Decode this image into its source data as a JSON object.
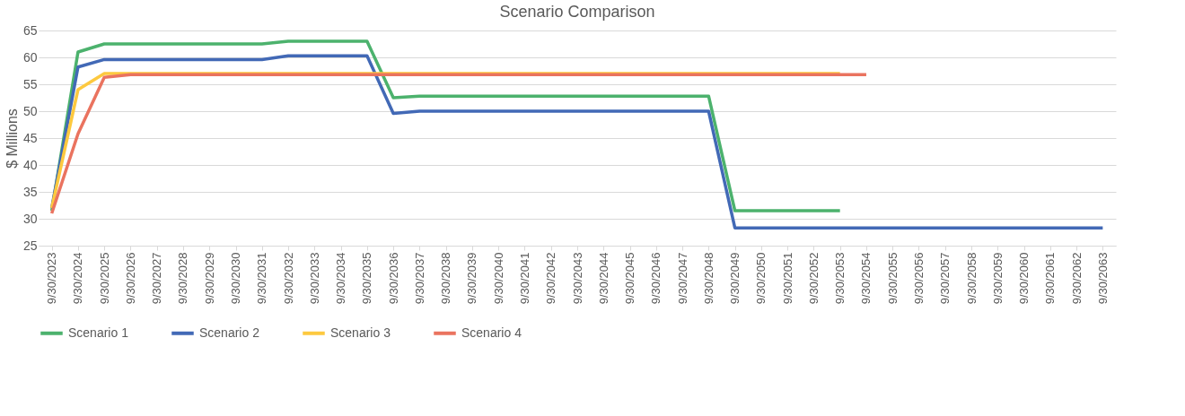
{
  "chart_data": {
    "type": "line",
    "title": "Scenario Comparison",
    "ylabel": "$ Millions",
    "categories": [
      "9/30/2023",
      "9/30/2024",
      "9/30/2025",
      "9/30/2026",
      "9/30/2027",
      "9/30/2028",
      "9/30/2029",
      "9/30/2030",
      "9/30/2031",
      "9/30/2032",
      "9/30/2033",
      "9/30/2034",
      "9/30/2035",
      "9/30/2036",
      "9/30/2037",
      "9/30/2038",
      "9/30/2039",
      "9/30/2040",
      "9/30/2041",
      "9/30/2042",
      "9/30/2043",
      "9/30/2044",
      "9/30/2045",
      "9/30/2046",
      "9/30/2047",
      "9/30/2048",
      "9/30/2049",
      "9/30/2050",
      "9/30/2051",
      "9/30/2052",
      "9/30/2053",
      "9/30/2054",
      "9/30/2055",
      "9/30/2056",
      "9/30/2057",
      "9/30/2058",
      "9/30/2059",
      "9/30/2060",
      "9/30/2061",
      "9/30/2062",
      "9/30/2063"
    ],
    "series": [
      {
        "name": "Scenario 1",
        "color": "#4cb26d",
        "values": [
          31.5,
          61,
          62.5,
          62.5,
          62.5,
          62.5,
          62.5,
          62.5,
          62.5,
          63,
          63,
          63,
          63,
          52.5,
          52.8,
          52.8,
          52.8,
          52.8,
          52.8,
          52.8,
          52.8,
          52.8,
          52.8,
          52.8,
          52.8,
          52.8,
          31.5,
          31.5,
          31.5,
          31.5,
          31.5,
          null,
          null,
          null,
          null,
          null,
          null,
          null,
          null,
          null,
          null
        ]
      },
      {
        "name": "Scenario 2",
        "color": "#4269b6",
        "values": [
          32,
          58.2,
          59.6,
          59.6,
          59.6,
          59.6,
          59.6,
          59.6,
          59.6,
          60.3,
          60.3,
          60.3,
          60.3,
          49.6,
          50,
          50,
          50,
          50,
          50,
          50,
          50,
          50,
          50,
          50,
          50,
          50,
          28.3,
          28.3,
          28.3,
          28.3,
          28.3,
          28.3,
          28.3,
          28.3,
          28.3,
          28.3,
          28.3,
          28.3,
          28.3,
          28.3,
          28.3
        ]
      },
      {
        "name": "Scenario 3",
        "color": "#fdc93f",
        "values": [
          32,
          54,
          57,
          57,
          57,
          57,
          57,
          57,
          57,
          57,
          57,
          57,
          57,
          57,
          57,
          57,
          57,
          57,
          57,
          57,
          57,
          57,
          57,
          57,
          57,
          57,
          57,
          57,
          57,
          57,
          57,
          null,
          null,
          null,
          null,
          null,
          null,
          null,
          null,
          null,
          null
        ]
      },
      {
        "name": "Scenario 4",
        "color": "#ea735f",
        "values": [
          31,
          45.8,
          56.3,
          56.8,
          56.8,
          56.8,
          56.8,
          56.8,
          56.8,
          56.8,
          56.8,
          56.8,
          56.8,
          56.8,
          56.8,
          56.8,
          56.8,
          56.8,
          56.8,
          56.8,
          56.8,
          56.8,
          56.8,
          56.8,
          56.8,
          56.8,
          56.8,
          56.8,
          56.8,
          56.8,
          56.8,
          56.8,
          null,
          null,
          null,
          null,
          null,
          null,
          null,
          null,
          null
        ]
      }
    ],
    "ylim": [
      25,
      65
    ],
    "yticks": [
      25,
      30,
      35,
      40,
      45,
      50,
      55,
      60,
      65
    ],
    "grid": "y",
    "legend": "bottom"
  }
}
